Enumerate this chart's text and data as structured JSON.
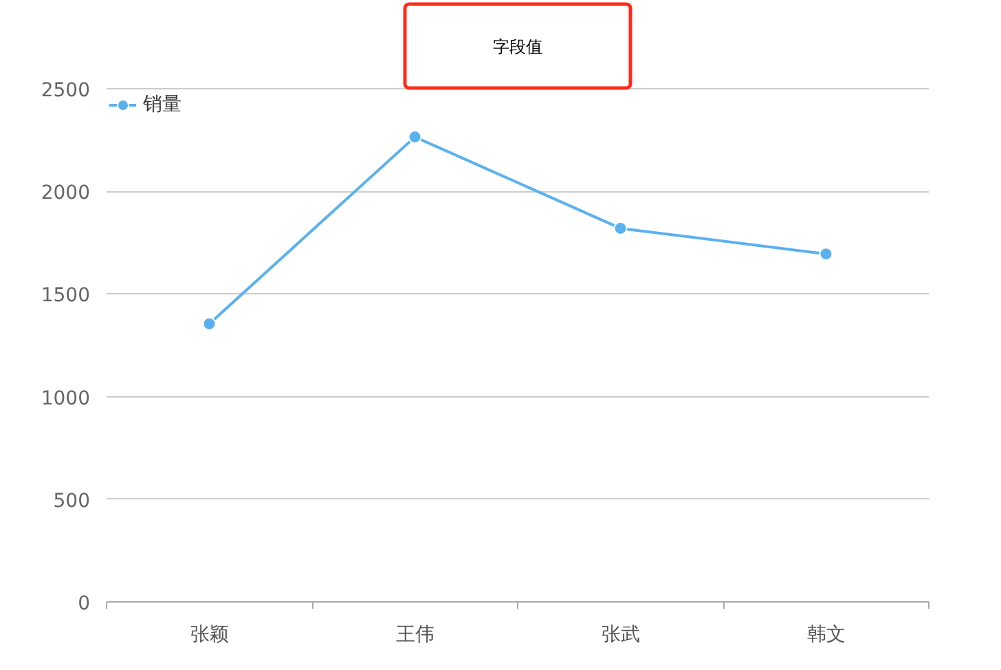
{
  "chart_data": {
    "type": "line",
    "title": "字段值",
    "categories": [
      "张颖",
      "王伟",
      "张武",
      "韩文"
    ],
    "series": [
      {
        "name": "销量",
        "color": "#5ab1ef",
        "values": [
          1355,
          2265,
          1820,
          1695
        ]
      }
    ],
    "ylim": [
      0,
      2500
    ],
    "yticks": [
      0,
      500,
      1000,
      1500,
      2000,
      2500
    ],
    "grid": "y",
    "legend": "top left",
    "marker": "circle",
    "line_style": "solid"
  }
}
